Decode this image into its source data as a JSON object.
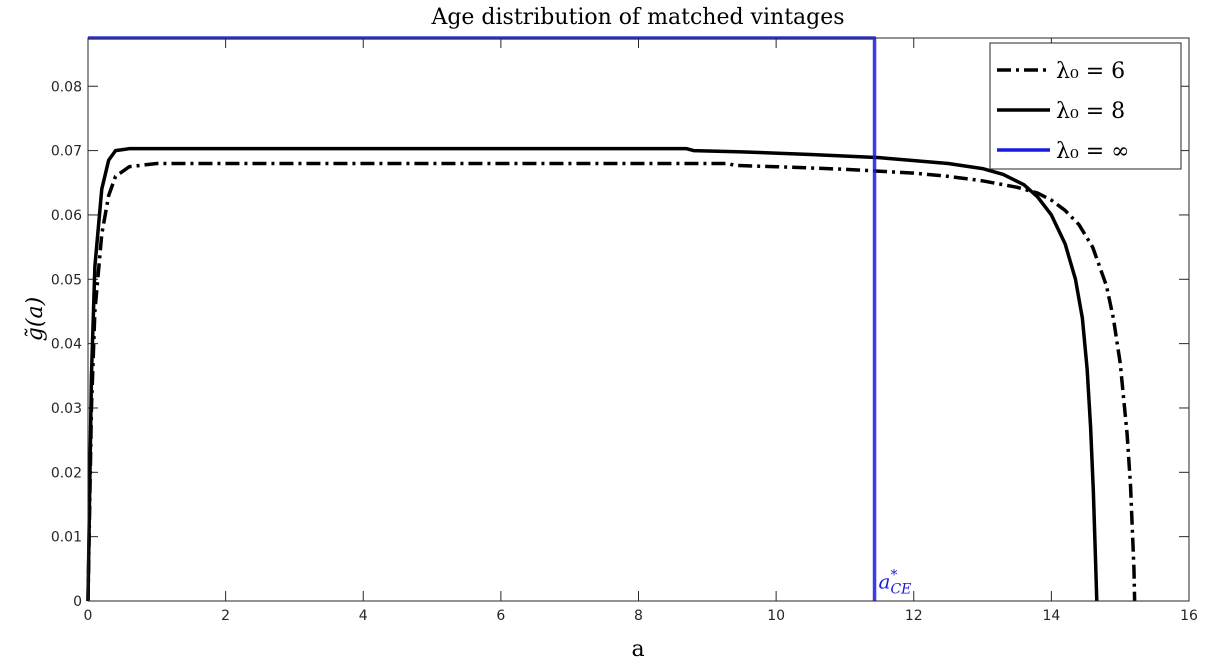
{
  "chart_data": {
    "type": "line",
    "title": "Age distribution of matched vintages",
    "xlabel": "a",
    "ylabel": "g̃(a)",
    "xlim": [
      0,
      16
    ],
    "ylim": [
      0,
      0.0875
    ],
    "xticks": [
      "0",
      "2",
      "4",
      "6",
      "8",
      "10",
      "12",
      "14",
      "16"
    ],
    "yticks": [
      "0",
      "0.01",
      "0.02",
      "0.03",
      "0.04",
      "0.05",
      "0.06",
      "0.07",
      "0.08"
    ],
    "xtick_values": [
      0,
      2,
      4,
      6,
      8,
      10,
      12,
      14,
      16
    ],
    "ytick_values": [
      0,
      0.01,
      0.02,
      0.03,
      0.04,
      0.05,
      0.06,
      0.07,
      0.08
    ],
    "grid": false,
    "legend_position": "top-right",
    "series": [
      {
        "name": "λ₀ = 6",
        "style": "dash-dot",
        "color": "#000000",
        "x": [
          0,
          0.05,
          0.1,
          0.2,
          0.3,
          0.4,
          0.6,
          1.0,
          2,
          4,
          6,
          8,
          9.3,
          9.4,
          10,
          11,
          12,
          12.5,
          13,
          13.5,
          13.8,
          14.0,
          14.2,
          14.4,
          14.6,
          14.8,
          14.9,
          15.0,
          15.1,
          15.15,
          15.2,
          15.21
        ],
        "y": [
          0,
          0.03,
          0.045,
          0.057,
          0.063,
          0.066,
          0.0675,
          0.068,
          0.068,
          0.068,
          0.068,
          0.068,
          0.068,
          0.0677,
          0.0675,
          0.0671,
          0.0665,
          0.066,
          0.0653,
          0.0643,
          0.0634,
          0.0623,
          0.0607,
          0.0585,
          0.055,
          0.049,
          0.044,
          0.037,
          0.026,
          0.018,
          0.005,
          0
        ]
      },
      {
        "name": "λ₀ = 8",
        "style": "solid",
        "color": "#000000",
        "x": [
          0,
          0.05,
          0.1,
          0.2,
          0.3,
          0.4,
          0.6,
          1.0,
          2,
          4,
          6,
          8,
          8.7,
          8.8,
          9.5,
          10.5,
          11.5,
          12.5,
          13,
          13.3,
          13.6,
          13.8,
          14.0,
          14.2,
          14.35,
          14.45,
          14.52,
          14.57,
          14.61,
          14.64,
          14.66
        ],
        "y": [
          0,
          0.035,
          0.052,
          0.064,
          0.0685,
          0.07,
          0.0703,
          0.0703,
          0.0703,
          0.0703,
          0.0703,
          0.0703,
          0.0703,
          0.07,
          0.0698,
          0.0694,
          0.0689,
          0.068,
          0.0672,
          0.0663,
          0.0647,
          0.0628,
          0.06,
          0.0555,
          0.05,
          0.044,
          0.036,
          0.027,
          0.017,
          0.007,
          0
        ]
      },
      {
        "name": "λ₀ = ∞",
        "style": "solid",
        "color": "#1a1ae6",
        "x": [
          0,
          11.43,
          11.43
        ],
        "y": [
          0.0875,
          0.0875,
          0
        ]
      }
    ],
    "annotations": [
      {
        "text": "a*CE",
        "x": 11.43,
        "y": 0.001,
        "color": "#1a1ae6"
      }
    ]
  }
}
